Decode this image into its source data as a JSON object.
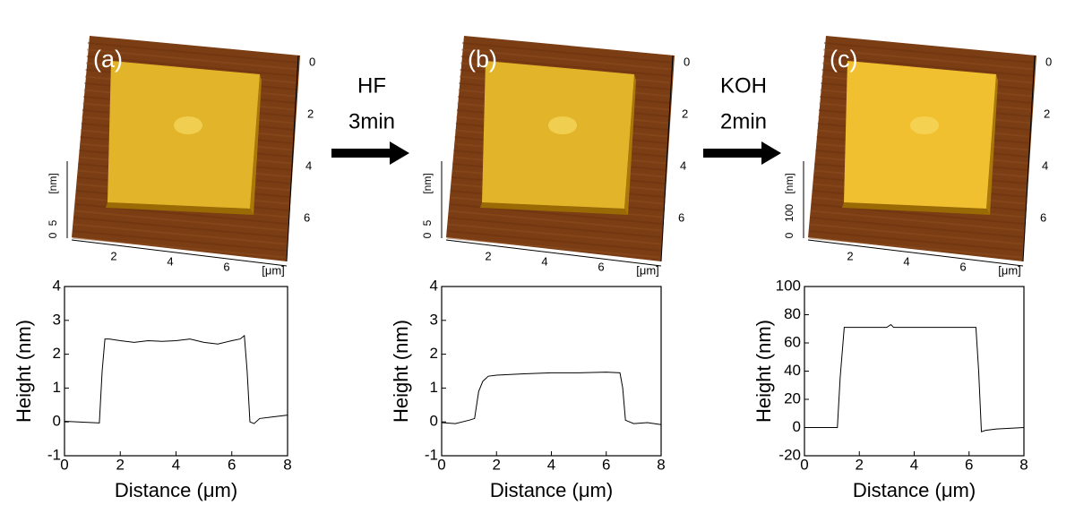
{
  "chart_data": [
    {
      "type": "line",
      "panel": "(a)",
      "xlabel": "Distance (μm)",
      "ylabel": "Height (nm)",
      "color": "#000000",
      "x": [
        0,
        0.5,
        1.0,
        1.25,
        1.35,
        1.45,
        1.6,
        2,
        2.5,
        3,
        3.5,
        4,
        4.5,
        5,
        5.5,
        6,
        6.3,
        6.45,
        6.55,
        6.65,
        6.8,
        7,
        7.5,
        8
      ],
      "values": [
        0.02,
        0.0,
        -0.02,
        -0.03,
        1.5,
        2.45,
        2.45,
        2.4,
        2.35,
        2.4,
        2.38,
        2.4,
        2.45,
        2.35,
        2.3,
        2.4,
        2.45,
        2.55,
        1.5,
        0.0,
        -0.05,
        0.1,
        0.15,
        0.2
      ],
      "xlim": [
        0,
        8
      ],
      "xticks": [
        0,
        2,
        4,
        6,
        8
      ],
      "ylim": [
        -1,
        4
      ],
      "yticks": [
        -1,
        0,
        1,
        2,
        3,
        4
      ],
      "image": {
        "x_ticks": [
          "2",
          "4",
          "6"
        ],
        "x_unit": "[μm]",
        "y_ticks": [
          "0",
          "2",
          "4",
          "6"
        ],
        "z_ticks": [
          "0",
          "5"
        ],
        "z_unit": "[nm]"
      }
    },
    {
      "type": "line",
      "panel": "(b)",
      "xlabel": "Distance (μm)",
      "ylabel": "Height (nm)",
      "color": "#000000",
      "x": [
        0,
        0.5,
        1.0,
        1.2,
        1.35,
        1.5,
        1.7,
        2,
        3,
        4,
        5,
        6,
        6.5,
        6.6,
        6.7,
        7,
        7.5,
        8
      ],
      "values": [
        -0.02,
        -0.05,
        0.05,
        0.1,
        0.9,
        1.2,
        1.35,
        1.38,
        1.42,
        1.45,
        1.45,
        1.47,
        1.45,
        1.0,
        0.05,
        -0.05,
        -0.02,
        -0.08
      ],
      "xlim": [
        0,
        8
      ],
      "xticks": [
        0,
        2,
        4,
        6,
        8
      ],
      "ylim": [
        -1,
        4
      ],
      "yticks": [
        -1,
        0,
        1,
        2,
        3,
        4
      ],
      "image": {
        "x_ticks": [
          "2",
          "4",
          "6"
        ],
        "x_unit": "[μm]",
        "y_ticks": [
          "0",
          "2",
          "4",
          "6"
        ],
        "z_ticks": [
          "0",
          "5"
        ],
        "z_unit": "[nm]"
      }
    },
    {
      "type": "line",
      "panel": "(c)",
      "xlabel": "Distance (μm)",
      "ylabel": "Height (nm)",
      "color": "#000000",
      "x": [
        0,
        1.2,
        1.3,
        1.45,
        2,
        3,
        3.15,
        3.25,
        4,
        5,
        6,
        6.25,
        6.35,
        6.45,
        6.6,
        7,
        8
      ],
      "values": [
        0,
        0,
        35,
        71,
        71,
        71,
        73,
        71,
        71,
        71,
        71,
        71,
        40,
        -3,
        -2,
        -1,
        0
      ],
      "xlim": [
        0,
        8
      ],
      "xticks": [
        0,
        2,
        4,
        6,
        8
      ],
      "ylim": [
        -20,
        100
      ],
      "yticks": [
        -20,
        0,
        20,
        40,
        60,
        80,
        100
      ],
      "image": {
        "x_ticks": [
          "2",
          "4",
          "6"
        ],
        "x_unit": "[μm]",
        "y_ticks": [
          "0",
          "2",
          "4",
          "6"
        ],
        "z_ticks": [
          "0",
          "100"
        ],
        "z_unit": "[nm]"
      }
    }
  ],
  "arrows": [
    {
      "top": "HF",
      "bottom": "3min"
    },
    {
      "top": "KOH",
      "bottom": "2min"
    }
  ]
}
